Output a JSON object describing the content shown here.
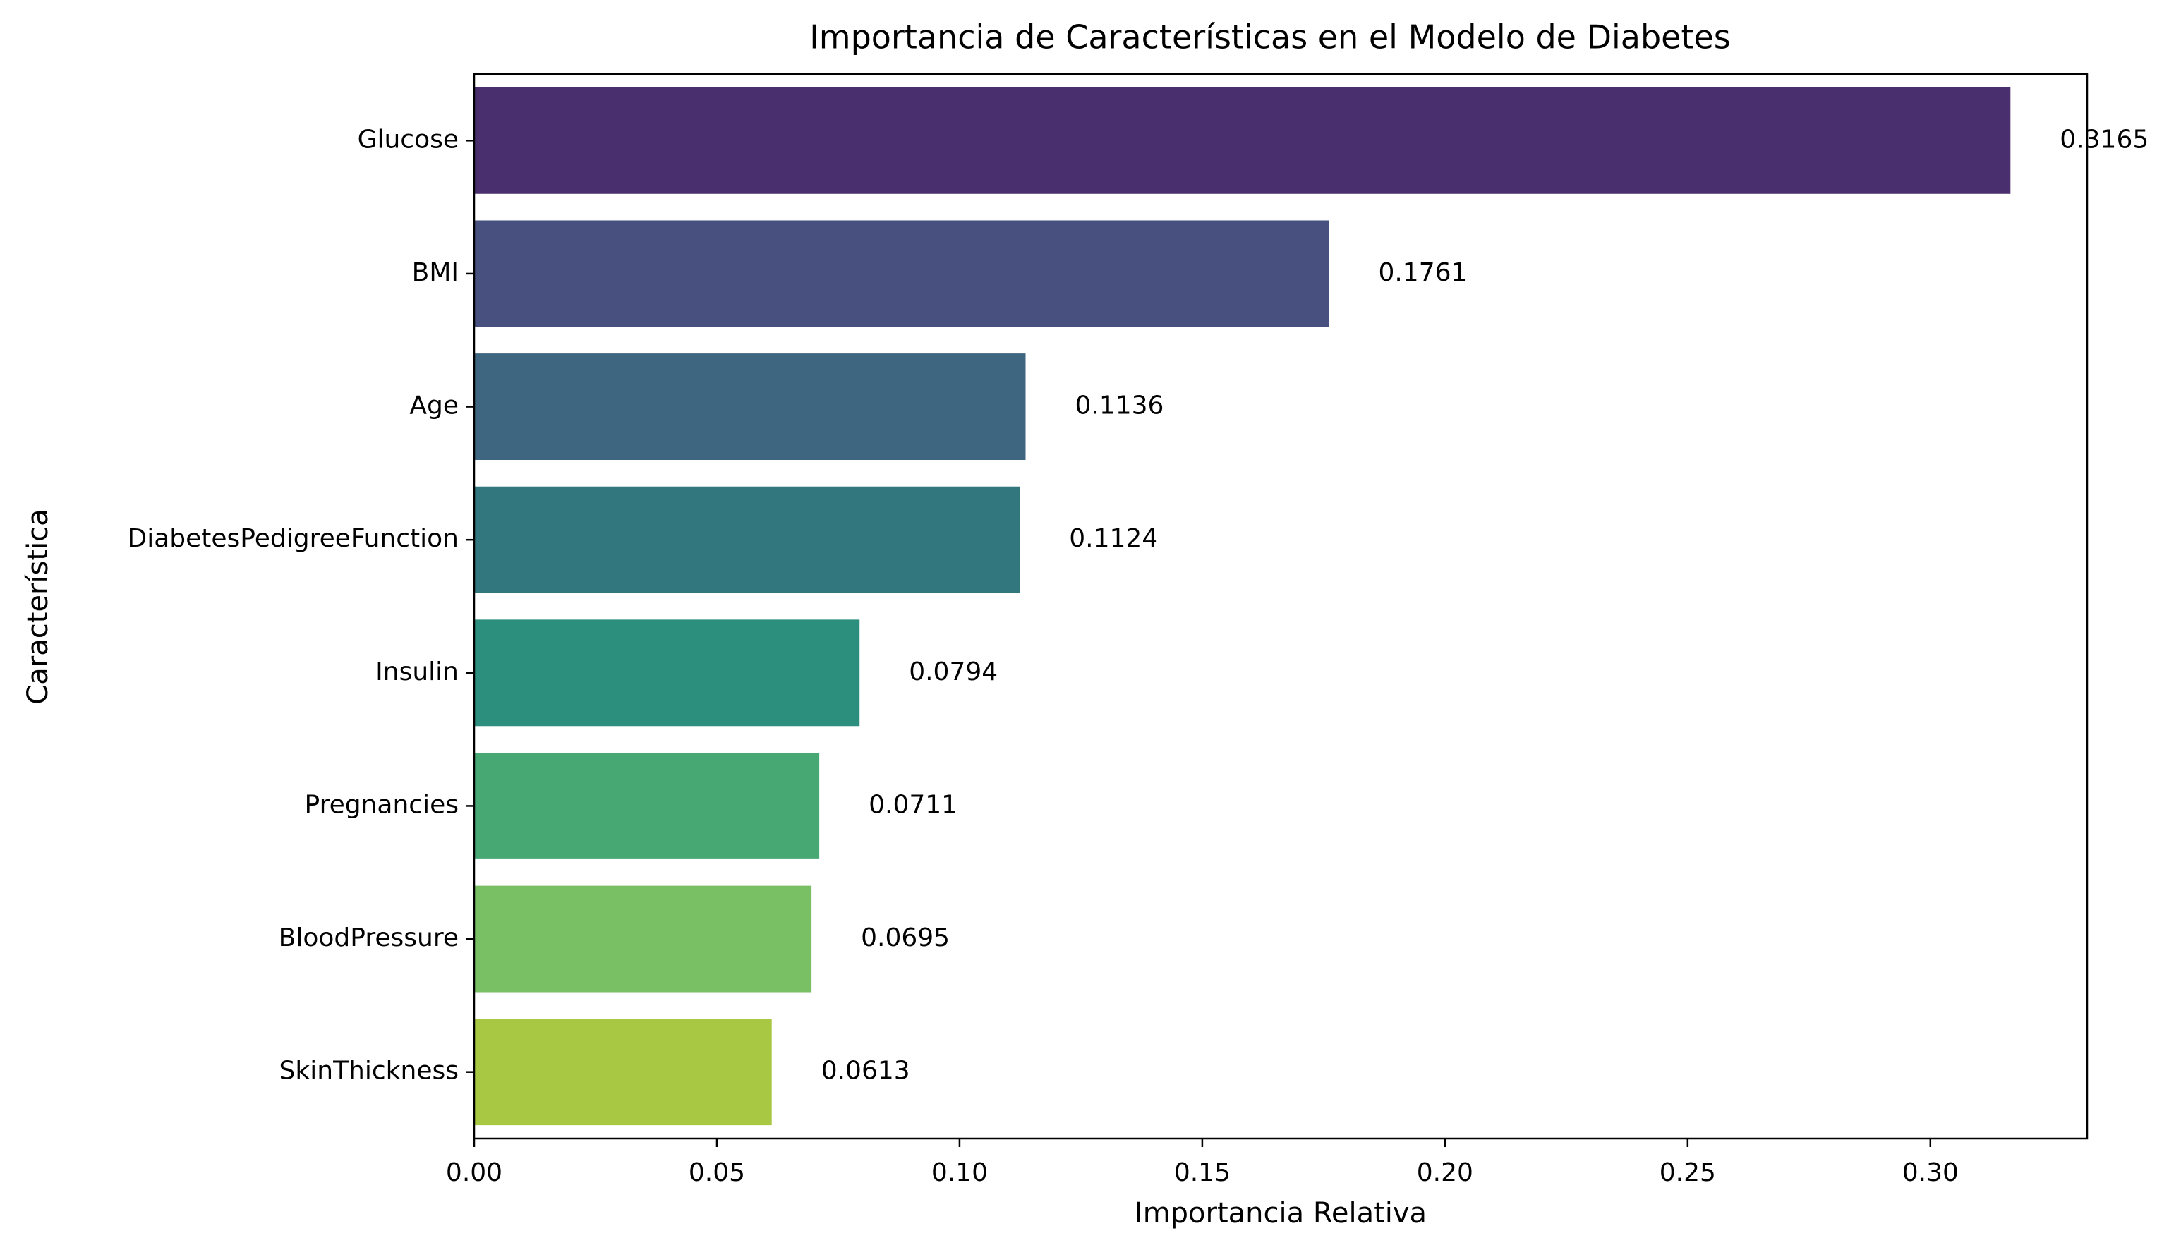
{
  "chart_data": {
    "type": "bar",
    "orientation": "horizontal",
    "title": "Importancia de Características en el Modelo de Diabetes",
    "xlabel": "Importancia Relativa",
    "ylabel": "Característica",
    "categories": [
      "Glucose",
      "BMI",
      "Age",
      "DiabetesPedigreeFunction",
      "Insulin",
      "Pregnancies",
      "BloodPressure",
      "SkinThickness"
    ],
    "values": [
      0.3165,
      0.1761,
      0.1136,
      0.1124,
      0.0794,
      0.0711,
      0.0695,
      0.0613
    ],
    "value_labels": [
      "0.3165",
      "0.1761",
      "0.1136",
      "0.1124",
      "0.0794",
      "0.0711",
      "0.0695",
      "0.0613"
    ],
    "colors": [
      "#4a2f6e",
      "#47507e",
      "#3f6680",
      "#33777e",
      "#2c8e7c",
      "#47a874",
      "#79bf63",
      "#a8c843"
    ],
    "xlim": [
      0,
      0.3323
    ],
    "xticks": [
      0.0,
      0.05,
      0.1,
      0.15,
      0.2,
      0.25,
      0.3
    ],
    "xtick_labels": [
      "0.00",
      "0.05",
      "0.10",
      "0.15",
      "0.20",
      "0.25",
      "0.30"
    ],
    "grid": false,
    "legend": "none"
  }
}
